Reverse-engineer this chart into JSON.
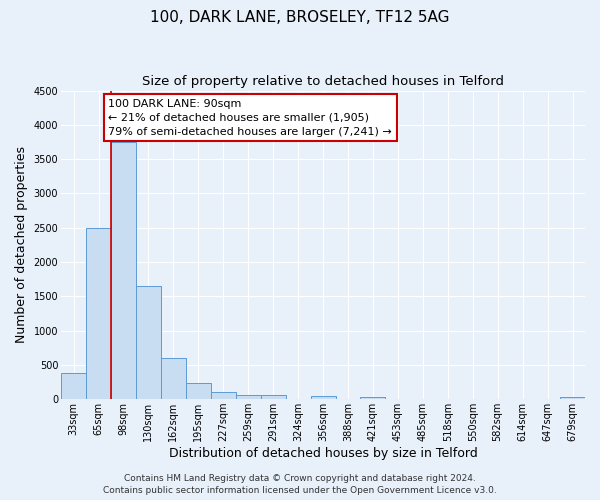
{
  "title": "100, DARK LANE, BROSELEY, TF12 5AG",
  "subtitle": "Size of property relative to detached houses in Telford",
  "xlabel": "Distribution of detached houses by size in Telford",
  "ylabel": "Number of detached properties",
  "bar_labels": [
    "33sqm",
    "65sqm",
    "98sqm",
    "130sqm",
    "162sqm",
    "195sqm",
    "227sqm",
    "259sqm",
    "291sqm",
    "324sqm",
    "356sqm",
    "388sqm",
    "421sqm",
    "453sqm",
    "485sqm",
    "518sqm",
    "550sqm",
    "582sqm",
    "614sqm",
    "647sqm",
    "679sqm"
  ],
  "bar_values": [
    375,
    2500,
    3750,
    1650,
    600,
    240,
    100,
    60,
    60,
    0,
    50,
    0,
    30,
    0,
    0,
    0,
    0,
    0,
    0,
    0,
    30
  ],
  "bar_color": "#c9ddf2",
  "bar_edge_color": "#5b9bd5",
  "red_line_index": 2,
  "annotation_title": "100 DARK LANE: 90sqm",
  "annotation_line1": "← 21% of detached houses are smaller (1,905)",
  "annotation_line2": "79% of semi-detached houses are larger (7,241) →",
  "annotation_box_facecolor": "#ffffff",
  "annotation_box_edgecolor": "#cc0000",
  "ylim": [
    0,
    4500
  ],
  "yticks": [
    0,
    500,
    1000,
    1500,
    2000,
    2500,
    3000,
    3500,
    4000,
    4500
  ],
  "footer_line1": "Contains HM Land Registry data © Crown copyright and database right 2024.",
  "footer_line2": "Contains public sector information licensed under the Open Government Licence v3.0.",
  "bg_color": "#e8f0fa",
  "plot_bg_color": "#e8f0fa",
  "grid_color": "#ffffff",
  "title_fontsize": 11,
  "subtitle_fontsize": 9.5,
  "axis_label_fontsize": 9,
  "tick_fontsize": 7,
  "annotation_fontsize": 8,
  "footer_fontsize": 6.5
}
